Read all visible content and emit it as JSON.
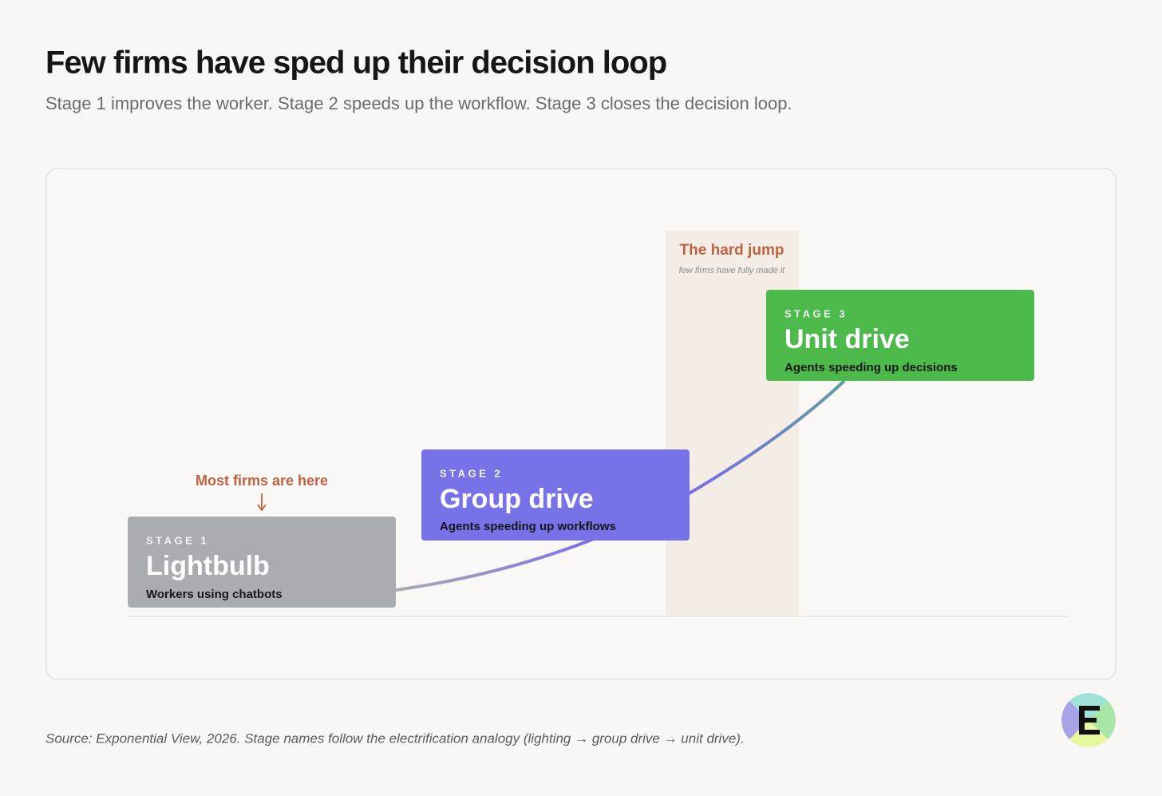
{
  "header": {
    "title": "Few firms have sped up their decision loop",
    "subtitle": "Stage 1 improves the worker. Stage 2 speeds up the workflow. Stage 3 closes the decision loop."
  },
  "annotations": {
    "most_firms": "Most firms are here",
    "hard_jump": {
      "title": "The hard jump",
      "subtitle": "few firms have fully made it"
    }
  },
  "stages": [
    {
      "label": "STAGE 1",
      "name": "Lightbulb",
      "description": "Workers using chatbots"
    },
    {
      "label": "STAGE 2",
      "name": "Group drive",
      "description": "Agents speeding up workflows"
    },
    {
      "label": "STAGE 3",
      "name": "Unit drive",
      "description": "Agents speeding up decisions"
    }
  ],
  "source": "Source: Exponential View, 2026. Stage names follow the electrification analogy (lighting → group drive → unit drive)."
}
